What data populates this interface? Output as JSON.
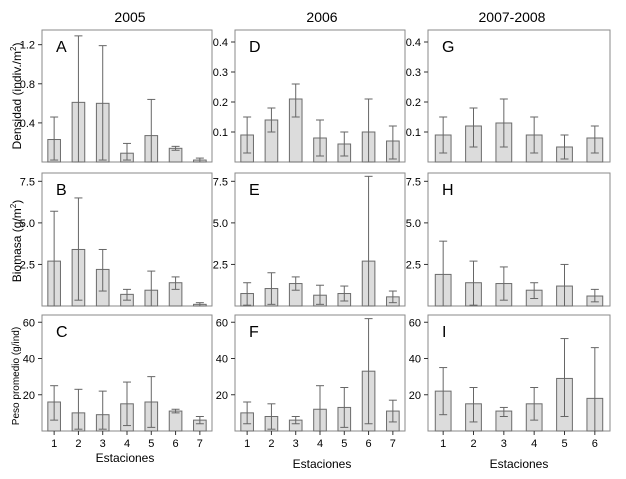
{
  "colors": {
    "bar_fill": "#dcdcdc",
    "bar_stroke": "#6b6b6b",
    "error_bar": "#666666",
    "frame": "#8a8a8a",
    "text": "#000000"
  },
  "columns": [
    "2005",
    "2006",
    "2007-2008"
  ],
  "row_ylabels": [
    {
      "main": "Densidad (indiv./m",
      "sup": "2",
      "tail": ")"
    },
    {
      "main": "Biomasa (g/m",
      "sup": "2",
      "tail": ")"
    },
    {
      "main": "Peso promedio (g/ind)",
      "sup": "",
      "tail": ""
    }
  ],
  "xlabel": "Estaciones",
  "chart_data": [
    {
      "type": "bar",
      "panel": "A",
      "row": 0,
      "col": 0,
      "ylim": [
        0,
        1.35
      ],
      "yticks": [
        "0.4",
        "0.8",
        "1.2"
      ],
      "categories": [
        "1",
        "2",
        "3",
        "4",
        "5",
        "6",
        "7"
      ],
      "values": [
        0.23,
        0.61,
        0.6,
        0.09,
        0.27,
        0.14,
        0.02
      ],
      "err_low": [
        0.02,
        0.0,
        0.02,
        0.02,
        0.0,
        0.12,
        0.0
      ],
      "err_high": [
        0.46,
        1.29,
        1.19,
        0.19,
        0.64,
        0.16,
        0.04
      ]
    },
    {
      "type": "bar",
      "panel": "D",
      "row": 0,
      "col": 1,
      "ylim": [
        0,
        0.44
      ],
      "yticks": [
        "0.1",
        "0.2",
        "0.3",
        "0.4"
      ],
      "categories": [
        "1",
        "2",
        "3",
        "4",
        "5",
        "6",
        "7"
      ],
      "values": [
        0.09,
        0.14,
        0.21,
        0.08,
        0.06,
        0.1,
        0.07
      ],
      "err_low": [
        0.03,
        0.1,
        0.15,
        0.02,
        0.02,
        0.0,
        0.01
      ],
      "err_high": [
        0.15,
        0.18,
        0.26,
        0.14,
        0.1,
        0.21,
        0.12
      ]
    },
    {
      "type": "bar",
      "panel": "G",
      "row": 0,
      "col": 2,
      "ylim": [
        0,
        0.44
      ],
      "yticks": [
        "0.1",
        "0.2",
        "0.3",
        "0.4"
      ],
      "categories": [
        "1",
        "2",
        "3",
        "4",
        "5",
        "6"
      ],
      "values": [
        0.09,
        0.12,
        0.13,
        0.09,
        0.05,
        0.08
      ],
      "err_low": [
        0.03,
        0.05,
        0.05,
        0.03,
        0.01,
        0.03
      ],
      "err_high": [
        0.15,
        0.18,
        0.21,
        0.15,
        0.09,
        0.12
      ]
    },
    {
      "type": "bar",
      "panel": "B",
      "row": 1,
      "col": 0,
      "ylim": [
        0,
        8
      ],
      "yticks": [
        "2.5",
        "5.0",
        "7.5"
      ],
      "categories": [
        "1",
        "2",
        "3",
        "4",
        "5",
        "6",
        "7"
      ],
      "values": [
        2.7,
        3.4,
        2.2,
        0.7,
        0.95,
        1.4,
        0.1
      ],
      "err_low": [
        0.0,
        0.35,
        0.9,
        0.35,
        0.0,
        1.0,
        0.0
      ],
      "err_high": [
        5.7,
        6.5,
        3.4,
        1.0,
        2.1,
        1.75,
        0.2
      ]
    },
    {
      "type": "bar",
      "panel": "E",
      "row": 1,
      "col": 1,
      "ylim": [
        0,
        8
      ],
      "yticks": [
        "2.5",
        "5.0",
        "7.5"
      ],
      "categories": [
        "1",
        "2",
        "3",
        "4",
        "5",
        "6",
        "7"
      ],
      "values": [
        0.75,
        1.05,
        1.35,
        0.65,
        0.75,
        2.7,
        0.55
      ],
      "err_low": [
        0.05,
        0.1,
        0.95,
        0.1,
        0.3,
        0.0,
        0.2
      ],
      "err_high": [
        1.4,
        2.0,
        1.75,
        1.25,
        1.2,
        7.8,
        0.9
      ]
    },
    {
      "type": "bar",
      "panel": "H",
      "row": 1,
      "col": 2,
      "ylim": [
        0,
        8
      ],
      "yticks": [
        "2.5",
        "5.0",
        "7.5"
      ],
      "categories": [
        "1",
        "2",
        "3",
        "4",
        "5",
        "6"
      ],
      "values": [
        1.9,
        1.4,
        1.35,
        0.95,
        1.2,
        0.6
      ],
      "err_low": [
        0.0,
        0.05,
        0.35,
        0.45,
        0.0,
        0.25
      ],
      "err_high": [
        3.9,
        2.7,
        2.35,
        1.4,
        2.5,
        1.0
      ]
    },
    {
      "type": "bar",
      "panel": "C",
      "row": 2,
      "col": 0,
      "ylim": [
        0,
        64
      ],
      "yticks": [
        "20",
        "40",
        "60"
      ],
      "categories": [
        "1",
        "2",
        "3",
        "4",
        "5",
        "6",
        "7"
      ],
      "values": [
        16,
        10,
        9,
        15,
        16,
        11,
        6
      ],
      "err_low": [
        6,
        1,
        1,
        3,
        2,
        10,
        4
      ],
      "err_high": [
        25,
        23,
        22,
        27,
        30,
        12,
        8
      ]
    },
    {
      "type": "bar",
      "panel": "F",
      "row": 2,
      "col": 1,
      "ylim": [
        0,
        64
      ],
      "yticks": [
        "20",
        "40",
        "60"
      ],
      "categories": [
        "1",
        "2",
        "3",
        "4",
        "5",
        "6",
        "7"
      ],
      "values": [
        10,
        8,
        6,
        12,
        13,
        33,
        11
      ],
      "err_low": [
        4,
        1,
        4,
        0,
        2,
        4,
        5
      ],
      "err_high": [
        16,
        15,
        8,
        25,
        24,
        62,
        17
      ]
    },
    {
      "type": "bar",
      "panel": "I",
      "row": 2,
      "col": 2,
      "ylim": [
        0,
        64
      ],
      "yticks": [
        "20",
        "40",
        "60"
      ],
      "categories": [
        "1",
        "2",
        "3",
        "4",
        "5",
        "6"
      ],
      "values": [
        22,
        15,
        11,
        15,
        29,
        18
      ],
      "err_low": [
        9,
        5,
        8,
        6,
        8,
        0
      ],
      "err_high": [
        35,
        24,
        13,
        24,
        51,
        46
      ]
    }
  ]
}
